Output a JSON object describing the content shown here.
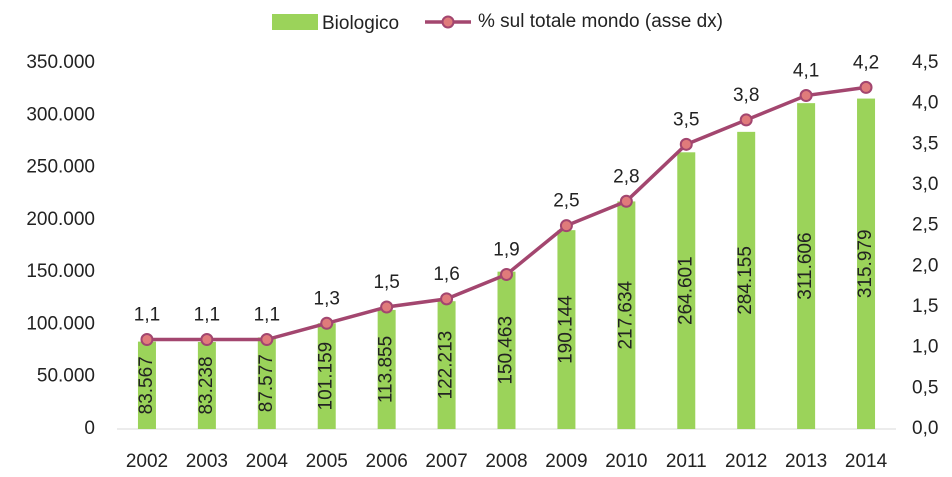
{
  "chart_data": {
    "type": "bar_line",
    "categories": [
      "2002",
      "2003",
      "2004",
      "2005",
      "2006",
      "2007",
      "2008",
      "2009",
      "2010",
      "2011",
      "2012",
      "2013",
      "2014"
    ],
    "series": [
      {
        "name": "Biologico",
        "type": "bar",
        "color": "#9bd35a",
        "values": [
          83567,
          83238,
          87577,
          101159,
          113855,
          122213,
          150463,
          190144,
          217634,
          264601,
          284155,
          311606,
          315979
        ],
        "value_labels": [
          "83.567",
          "83.238",
          "87.577",
          "101.159",
          "113.855",
          "122.213",
          "150.463",
          "190.144",
          "217.634",
          "264.601",
          "284.155",
          "311.606",
          "315.979"
        ]
      },
      {
        "name": "% sul totale mondo (asse dx)",
        "type": "line",
        "axis": "y2",
        "color": "#a3466f",
        "marker_color": "#e07b7b",
        "values": [
          1.1,
          1.1,
          1.1,
          1.3,
          1.5,
          1.6,
          1.9,
          2.5,
          2.8,
          3.5,
          3.8,
          4.1,
          4.2
        ],
        "value_labels": [
          "1,1",
          "1,1",
          "1,1",
          "1,3",
          "1,5",
          "1,6",
          "1,9",
          "2,5",
          "2,8",
          "3,5",
          "3,8",
          "4,1",
          "4,2"
        ]
      }
    ],
    "ylim": [
      0,
      350000
    ],
    "yticks": [
      0,
      {
        "value": 50000,
        "label": "50.000"
      },
      {
        "value": 100000,
        "label": "100.000"
      },
      {
        "value": 150000,
        "label": "150.000"
      },
      {
        "value": 200000,
        "label": "200.000"
      },
      {
        "value": 250000,
        "label": "250.000"
      },
      {
        "value": 300000,
        "label": "300.000"
      },
      {
        "value": 350000,
        "label": "350.000"
      }
    ],
    "y2lim": [
      0,
      4.5
    ],
    "y2ticks": [
      {
        "value": 0,
        "label": "0,0"
      },
      {
        "value": 0.5,
        "label": "0,5"
      },
      {
        "value": 1,
        "label": "1,0"
      },
      {
        "value": 1.5,
        "label": "1,5"
      },
      {
        "value": 2,
        "label": "2,0"
      },
      {
        "value": 2.5,
        "label": "2,5"
      },
      {
        "value": 3,
        "label": "3,0"
      },
      {
        "value": 3.5,
        "label": "3,5"
      },
      {
        "value": 4,
        "label": "4,0"
      },
      {
        "value": 4.5,
        "label": "4,5"
      }
    ],
    "legend": "top",
    "grid": false
  }
}
